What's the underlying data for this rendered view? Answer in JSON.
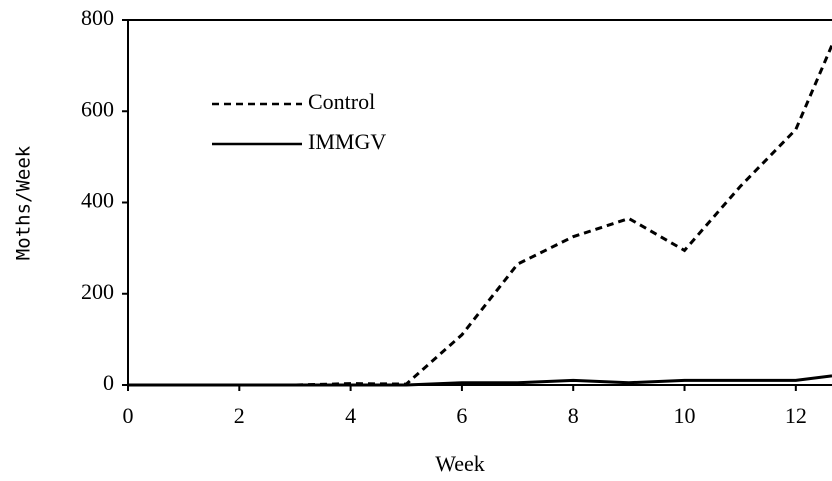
{
  "chart_data": {
    "type": "line",
    "x_label": "Week",
    "y_label": "Moths/Week",
    "x": [
      0,
      1,
      2,
      3,
      4,
      5,
      6,
      7,
      8,
      9,
      10,
      11,
      12,
      12.65
    ],
    "series": [
      {
        "name": "Control",
        "color": "#000000",
        "dash": true,
        "values": [
          0,
          0,
          0,
          0,
          3,
          2,
          110,
          265,
          325,
          365,
          295,
          435,
          560,
          745
        ]
      },
      {
        "name": "IMMGV",
        "color": "#000000",
        "dash": false,
        "values": [
          0,
          0,
          0,
          0,
          0,
          0,
          5,
          5,
          10,
          5,
          10,
          10,
          10,
          20
        ]
      }
    ],
    "xlim": [
      0,
      12.65
    ],
    "xticks": [
      0,
      2,
      4,
      6,
      8,
      10,
      12
    ],
    "ylim": [
      0,
      800
    ],
    "yticks": [
      0,
      200,
      400,
      600,
      800
    ]
  }
}
